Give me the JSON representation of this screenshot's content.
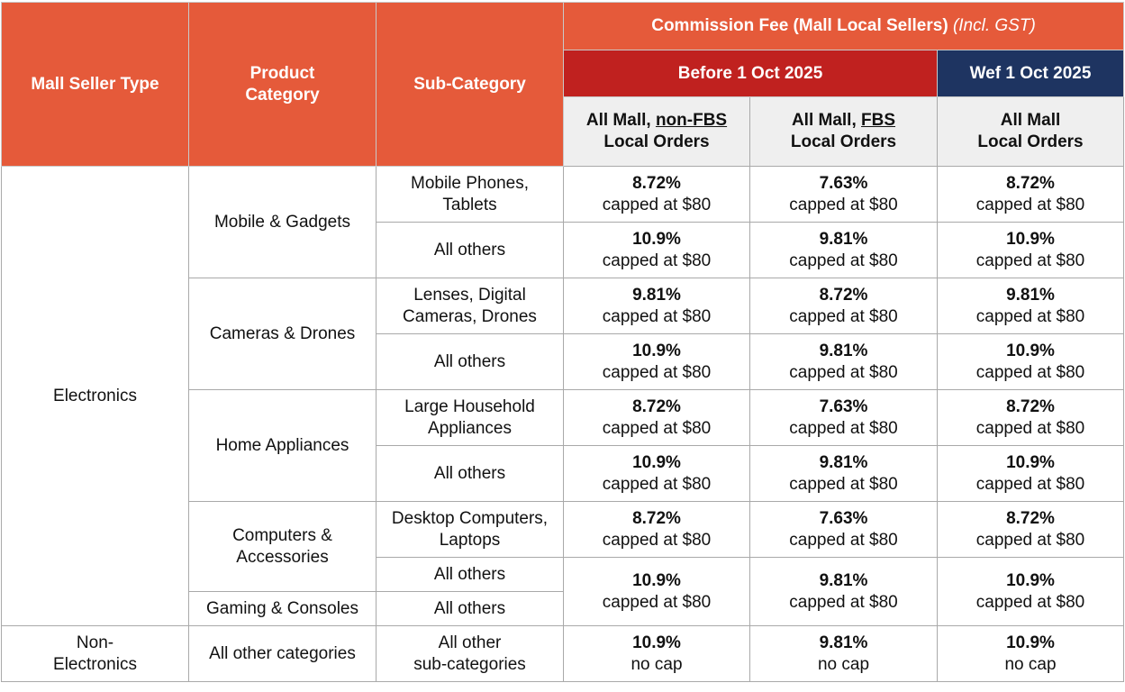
{
  "header": {
    "commission_title": "Commission Fee (Mall Local Sellers)",
    "commission_note": "(Incl. GST)",
    "mall_seller_type": "Mall Seller Type",
    "product_category": [
      "Product",
      "Category"
    ],
    "sub_category": "Sub-Category",
    "before": "Before 1 Oct 2025",
    "wef": "Wef 1 Oct 2025",
    "col_nonfbs": {
      "pre": "All Mall, ",
      "emph": "non-FBS",
      "line2": "Local Orders"
    },
    "col_fbs": {
      "pre": "All Mall, ",
      "emph": "FBS",
      "line2": "Local Orders"
    },
    "col_all": {
      "line1": "All Mall",
      "line2": "Local Orders"
    }
  },
  "colors": {
    "header_orange": "#e55a3a",
    "header_red": "#c0211f",
    "header_navy": "#1e3461",
    "subheader_grey": "#efefef"
  },
  "groups": [
    {
      "name": "Electronics"
    },
    {
      "name": [
        "Non-",
        "Electronics"
      ]
    }
  ],
  "categories": [
    {
      "name": [
        "Mobile & Gadgets"
      ]
    },
    {
      "name": [
        "Cameras & Drones"
      ]
    },
    {
      "name": [
        "Home Appliances"
      ]
    },
    {
      "name": [
        "Computers &",
        "Accessories"
      ]
    },
    {
      "name": [
        "Gaming & Consoles"
      ]
    },
    {
      "name": [
        "All other categories"
      ]
    }
  ],
  "rows": [
    {
      "sub": [
        "Mobile Phones,",
        "Tablets"
      ],
      "fees": [
        [
          "8.72%",
          "capped at $80"
        ],
        [
          "7.63%",
          "capped at $80"
        ],
        [
          "8.72%",
          "capped at $80"
        ]
      ]
    },
    {
      "sub": [
        "All others"
      ],
      "fees": [
        [
          "10.9%",
          "capped at $80"
        ],
        [
          "9.81%",
          "capped at $80"
        ],
        [
          "10.9%",
          "capped at $80"
        ]
      ]
    },
    {
      "sub": [
        "Lenses, Digital",
        "Cameras, Drones"
      ],
      "fees": [
        [
          "9.81%",
          "capped at $80"
        ],
        [
          "8.72%",
          "capped at $80"
        ],
        [
          "9.81%",
          "capped at $80"
        ]
      ]
    },
    {
      "sub": [
        "All others"
      ],
      "fees": [
        [
          "10.9%",
          "capped at $80"
        ],
        [
          "9.81%",
          "capped at $80"
        ],
        [
          "10.9%",
          "capped at $80"
        ]
      ]
    },
    {
      "sub": [
        "Large Household",
        "Appliances"
      ],
      "fees": [
        [
          "8.72%",
          "capped at $80"
        ],
        [
          "7.63%",
          "capped at $80"
        ],
        [
          "8.72%",
          "capped at $80"
        ]
      ]
    },
    {
      "sub": [
        "All others"
      ],
      "fees": [
        [
          "10.9%",
          "capped at $80"
        ],
        [
          "9.81%",
          "capped at $80"
        ],
        [
          "10.9%",
          "capped at $80"
        ]
      ]
    },
    {
      "sub": [
        "Desktop Computers,",
        "Laptops"
      ],
      "fees": [
        [
          "8.72%",
          "capped at $80"
        ],
        [
          "7.63%",
          "capped at $80"
        ],
        [
          "8.72%",
          "capped at $80"
        ]
      ]
    },
    {
      "sub": [
        "All others"
      ],
      "fees": [
        [
          "10.9%",
          "capped at $80"
        ],
        [
          "9.81%",
          "capped at $80"
        ],
        [
          "10.9%",
          "capped at $80"
        ]
      ]
    },
    {
      "sub": [
        "All others"
      ]
    },
    {
      "sub": [
        "All other",
        "sub-categories"
      ],
      "fees": [
        [
          "10.9%",
          "no cap"
        ],
        [
          "9.81%",
          "no cap"
        ],
        [
          "10.9%",
          "no cap"
        ]
      ]
    }
  ]
}
